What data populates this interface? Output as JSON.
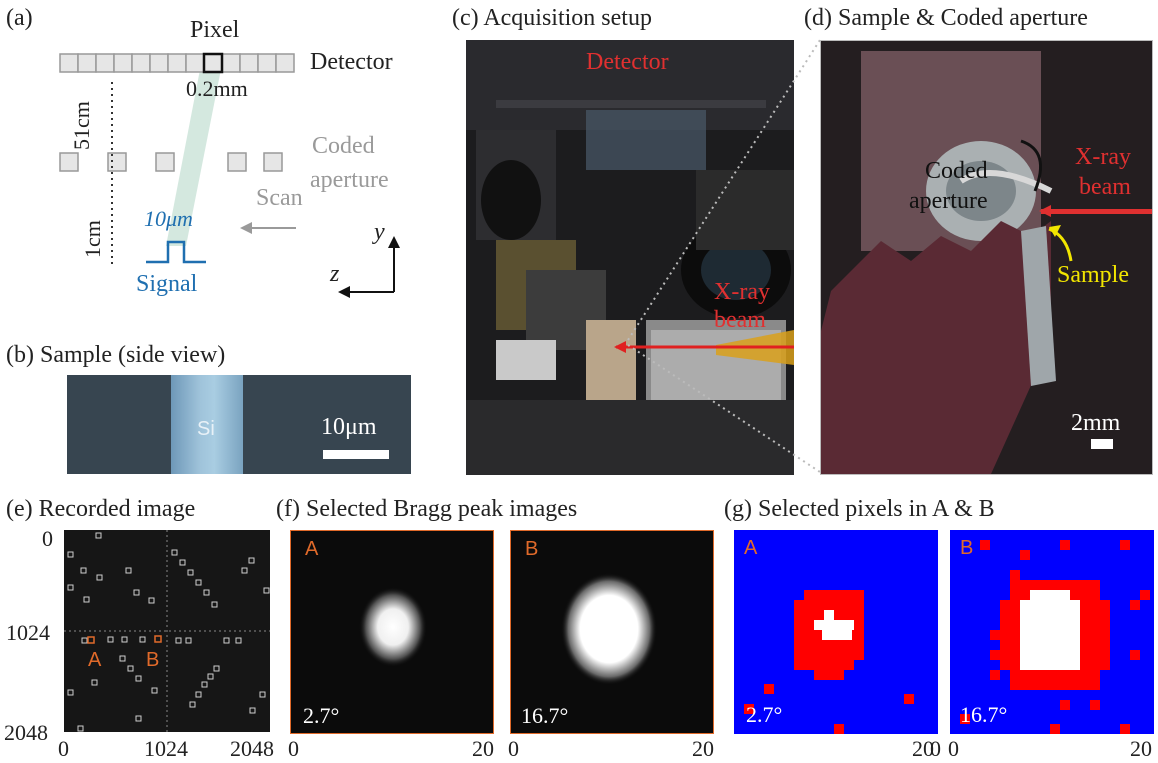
{
  "panel_a": {
    "label": "(a)",
    "pixel": "Pixel",
    "detector": "Detector",
    "pixel_size": "0.2mm",
    "distance_top": "51cm",
    "coded_line1": "Coded",
    "coded_line2": "aperture",
    "scan": "Scan",
    "distance_bottom": "1cm",
    "signal_width": "10μm",
    "signal": "Signal",
    "axis_y": "y",
    "axis_z": "z"
  },
  "panel_b": {
    "title": "(b) Sample (side view)",
    "material": "Si",
    "scale": "10μm"
  },
  "panel_c": {
    "title": "(c) Acquisition setup",
    "detector": "Detector",
    "xray_line1": "X-ray",
    "xray_line2": "beam"
  },
  "panel_d": {
    "title": "(d) Sample & Coded aperture",
    "coded_line1": "Coded",
    "coded_line2": "aperture",
    "xray_line1": "X-ray",
    "xray_line2": "beam",
    "sample": "Sample",
    "scale": "2mm"
  },
  "panel_e": {
    "title": "(e) Recorded image",
    "y_ticks": [
      "0",
      "1024",
      "2048"
    ],
    "x_ticks": [
      "0",
      "1024",
      "2048"
    ],
    "region_a": "A",
    "region_b": "B"
  },
  "panel_f": {
    "title": "(f) Selected Bragg peak images",
    "images": [
      {
        "label": "A",
        "angle": "2.7°"
      },
      {
        "label": "B",
        "angle": "16.7°"
      }
    ],
    "x_ticks": [
      "0",
      "20"
    ]
  },
  "panel_g": {
    "title": "(g) Selected pixels in A & B",
    "images": [
      {
        "label": "A",
        "angle": "2.7°"
      },
      {
        "label": "B",
        "angle": "16.7°"
      }
    ],
    "x_ticks": [
      "0",
      "20"
    ]
  },
  "colors": {
    "orange": "#e06a2a",
    "red": "#e03030",
    "blue": "#1f6fb0",
    "gray": "#9a9a9a",
    "mask_blue": "#0000ff",
    "mask_red": "#ff0000",
    "yellow": "#f2e600"
  }
}
